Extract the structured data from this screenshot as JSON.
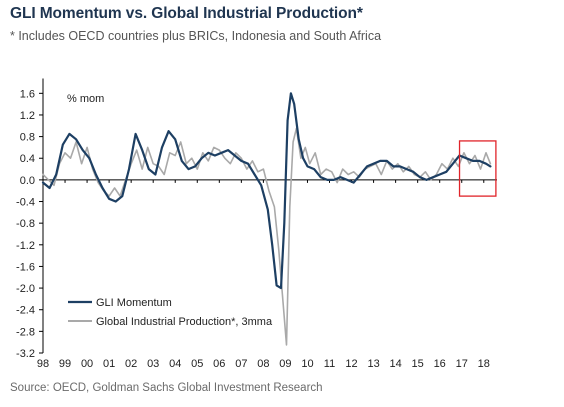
{
  "header": {
    "title": "GLI Momentum vs. Global Industrial Production*",
    "subtitle": "* Includes OECD countries plus BRICs, Indonesia and South Africa"
  },
  "footer": {
    "source": "Source: OECD, Goldman Sachs Global Investment Research"
  },
  "colors": {
    "gli": "#1d3f63",
    "ip": "#a9a9a9",
    "highlight": "#e0242a",
    "axis": "#000000"
  },
  "chart_data": {
    "type": "line",
    "unit_label": "% mom",
    "x_range": [
      1998.0,
      2018.6
    ],
    "ylim": [
      -3.2,
      1.8
    ],
    "y_ticks": [
      "1.6",
      "1.2",
      "0.8",
      "0.4",
      "0.0",
      "-0.4",
      "-0.8",
      "-1.2",
      "-1.6",
      "-2.0",
      "-2.4",
      "-2.8",
      "-3.2"
    ],
    "y_tick_values": [
      1.6,
      1.2,
      0.8,
      0.4,
      0.0,
      -0.4,
      -0.8,
      -1.2,
      -1.6,
      -2.0,
      -2.4,
      -2.8,
      -3.2
    ],
    "x_ticks": [
      "98",
      "99",
      "00",
      "01",
      "02",
      "03",
      "04",
      "05",
      "06",
      "07",
      "08",
      "09",
      "10",
      "11",
      "12",
      "13",
      "14",
      "15",
      "16",
      "17",
      "18"
    ],
    "x_tick_values": [
      1998,
      1999,
      2000,
      2001,
      2002,
      2003,
      2004,
      2005,
      2006,
      2007,
      2008,
      2009,
      2010,
      2011,
      2012,
      2013,
      2014,
      2015,
      2016,
      2017,
      2018
    ],
    "legend": {
      "position": "bottom-left"
    },
    "highlight_box": {
      "x": [
        2016.9,
        2018.55
      ],
      "y": [
        -0.3,
        0.72
      ]
    },
    "series": [
      {
        "name": "GLI Momentum",
        "x": [
          1998.0,
          1998.3,
          1998.6,
          1998.9,
          1999.2,
          1999.5,
          1999.8,
          2000.1,
          2000.4,
          2000.7,
          2001.0,
          2001.3,
          2001.6,
          2001.9,
          2002.2,
          2002.5,
          2002.8,
          2003.1,
          2003.4,
          2003.7,
          2004.0,
          2004.3,
          2004.6,
          2004.9,
          2005.2,
          2005.5,
          2005.8,
          2006.1,
          2006.4,
          2006.7,
          2007.0,
          2007.3,
          2007.6,
          2007.9,
          2008.2,
          2008.4,
          2008.6,
          2008.8,
          2008.95,
          2009.1,
          2009.25,
          2009.4,
          2009.6,
          2009.8,
          2010.0,
          2010.3,
          2010.6,
          2010.9,
          2011.2,
          2011.5,
          2011.8,
          2012.1,
          2012.4,
          2012.7,
          2013.0,
          2013.3,
          2013.6,
          2013.9,
          2014.2,
          2014.5,
          2014.8,
          2015.1,
          2015.4,
          2015.7,
          2016.0,
          2016.3,
          2016.6,
          2016.9,
          2017.2,
          2017.5,
          2017.8,
          2018.1,
          2018.3
        ],
        "y": [
          -0.05,
          -0.15,
          0.1,
          0.65,
          0.85,
          0.75,
          0.55,
          0.4,
          0.1,
          -0.15,
          -0.35,
          -0.4,
          -0.3,
          0.2,
          0.85,
          0.55,
          0.2,
          0.1,
          0.6,
          0.9,
          0.75,
          0.35,
          0.2,
          0.25,
          0.4,
          0.5,
          0.45,
          0.5,
          0.55,
          0.45,
          0.35,
          0.3,
          0.1,
          -0.1,
          -0.55,
          -1.2,
          -1.95,
          -2.0,
          -0.8,
          1.1,
          1.6,
          1.4,
          0.75,
          0.4,
          0.25,
          0.2,
          0.05,
          0.0,
          0.0,
          0.05,
          0.0,
          -0.05,
          0.1,
          0.25,
          0.3,
          0.35,
          0.35,
          0.25,
          0.25,
          0.2,
          0.15,
          0.05,
          0.0,
          0.05,
          0.1,
          0.15,
          0.3,
          0.45,
          0.4,
          0.35,
          0.35,
          0.3,
          0.25
        ]
      },
      {
        "name": "Global Industrial Production*, 3mma",
        "x": [
          1998.0,
          1998.25,
          1998.5,
          1998.75,
          1999.0,
          1999.25,
          1999.5,
          1999.75,
          2000.0,
          2000.25,
          2000.5,
          2000.75,
          2001.0,
          2001.25,
          2001.5,
          2001.75,
          2002.0,
          2002.25,
          2002.5,
          2002.75,
          2003.0,
          2003.25,
          2003.5,
          2003.75,
          2004.0,
          2004.25,
          2004.5,
          2004.75,
          2005.0,
          2005.25,
          2005.5,
          2005.75,
          2006.0,
          2006.25,
          2006.5,
          2006.75,
          2007.0,
          2007.25,
          2007.5,
          2007.75,
          2008.0,
          2008.25,
          2008.5,
          2008.7,
          2008.9,
          2009.05,
          2009.2,
          2009.35,
          2009.5,
          2009.7,
          2009.9,
          2010.1,
          2010.35,
          2010.6,
          2010.85,
          2011.1,
          2011.35,
          2011.6,
          2011.85,
          2012.1,
          2012.35,
          2012.6,
          2012.85,
          2013.1,
          2013.35,
          2013.6,
          2013.85,
          2014.1,
          2014.35,
          2014.6,
          2014.85,
          2015.1,
          2015.35,
          2015.6,
          2015.85,
          2016.1,
          2016.35,
          2016.6,
          2016.85,
          2017.1,
          2017.35,
          2017.6,
          2017.85,
          2018.1,
          2018.3
        ],
        "y": [
          0.1,
          0.0,
          -0.1,
          0.3,
          0.5,
          0.4,
          0.7,
          0.3,
          0.6,
          0.2,
          -0.05,
          -0.2,
          -0.3,
          -0.15,
          -0.3,
          0.0,
          0.3,
          0.55,
          0.2,
          0.6,
          0.3,
          0.25,
          0.1,
          0.5,
          0.45,
          0.7,
          0.3,
          0.4,
          0.2,
          0.5,
          0.35,
          0.6,
          0.55,
          0.4,
          0.3,
          0.5,
          0.4,
          0.2,
          0.35,
          0.15,
          0.2,
          -0.2,
          -0.5,
          -1.3,
          -2.3,
          -3.05,
          -0.5,
          0.7,
          0.95,
          0.4,
          0.6,
          0.3,
          0.5,
          0.1,
          0.2,
          0.15,
          -0.05,
          0.2,
          0.1,
          0.15,
          0.05,
          0.2,
          0.25,
          0.3,
          0.1,
          0.35,
          0.2,
          0.3,
          0.15,
          0.25,
          0.1,
          0.05,
          0.15,
          0.0,
          0.1,
          0.3,
          0.2,
          0.4,
          0.25,
          0.5,
          0.3,
          0.45,
          0.2,
          0.5,
          0.3
        ]
      }
    ]
  }
}
